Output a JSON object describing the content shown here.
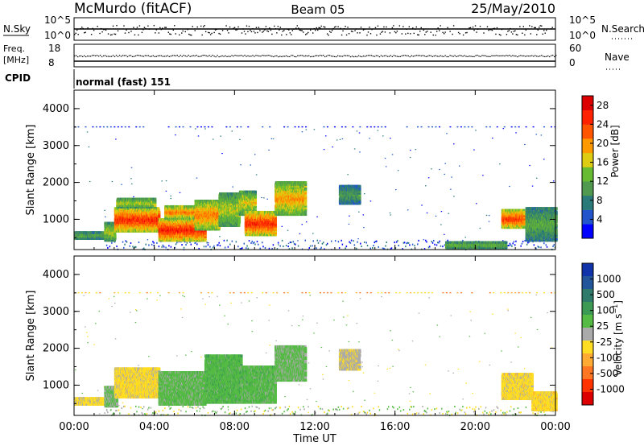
{
  "header": {
    "station": "McMurdo (fitACF)",
    "beam": "Beam 05",
    "date": "25/May/2010"
  },
  "status_panel": {
    "nsky_label": "N.Sky",
    "nsky_ticks": [
      "10^5",
      "10^0"
    ],
    "nsky_right_ticks": [
      "10^5",
      "10^0"
    ],
    "nsearch_label": "N.Search",
    "freq_label": "Freq.",
    "freq_unit": "[MHz]",
    "freq_ticks": [
      "18",
      "8"
    ],
    "nave_ticks": [
      "60",
      "0"
    ],
    "nave_label": "Nave",
    "cpid_label": "CPID",
    "cpid_value": "normal (fast) 151"
  },
  "x_axis": {
    "label": "Time UT",
    "ticks": [
      "00:00",
      "04:00",
      "08:00",
      "12:00",
      "16:00",
      "20:00",
      "00:00"
    ]
  },
  "chart_data": [
    {
      "type": "heatmap",
      "panel": "power",
      "ylabel": "Slant Range [km]",
      "yticks": [
        "1000",
        "2000",
        "3000",
        "4000"
      ],
      "ylim": [
        180,
        4500
      ],
      "xlim_hours": [
        0,
        24
      ],
      "colorbar": {
        "label": "Power [dB]",
        "ticks": [
          "4",
          "8",
          "12",
          "16",
          "20",
          "24",
          "28"
        ],
        "colors": [
          "#0000ff",
          "#2255cc",
          "#2a7a7a",
          "#4f9a4f",
          "#66bb33",
          "#ddcc11",
          "#ff9900",
          "#ff5500",
          "#ff2200",
          "#dd0000"
        ]
      },
      "regions": [
        {
          "t0": 0.0,
          "t1": 1.4,
          "r0": 450,
          "r1": 650,
          "v": 0.45
        },
        {
          "t0": 1.5,
          "t1": 2.0,
          "r0": 400,
          "r1": 900,
          "v": 0.55
        },
        {
          "t0": 2.0,
          "t1": 4.2,
          "r0": 650,
          "r1": 1300,
          "v": 0.92
        },
        {
          "t0": 2.1,
          "t1": 4.0,
          "r0": 1300,
          "r1": 1550,
          "v": 0.6
        },
        {
          "t0": 4.2,
          "t1": 6.5,
          "r0": 400,
          "r1": 1000,
          "v": 0.95
        },
        {
          "t0": 4.5,
          "t1": 6.0,
          "r0": 1000,
          "r1": 1350,
          "v": 0.8
        },
        {
          "t0": 6.0,
          "t1": 7.2,
          "r0": 700,
          "r1": 1500,
          "v": 0.75
        },
        {
          "t0": 7.2,
          "t1": 8.2,
          "r0": 800,
          "r1": 1700,
          "v": 0.55
        },
        {
          "t0": 8.2,
          "t1": 9.0,
          "r0": 1100,
          "r1": 1750,
          "v": 0.6
        },
        {
          "t0": 8.5,
          "t1": 10.0,
          "r0": 550,
          "r1": 1200,
          "v": 0.93
        },
        {
          "t0": 10.0,
          "t1": 11.5,
          "r0": 1100,
          "r1": 2000,
          "v": 0.7
        },
        {
          "t0": 13.2,
          "t1": 14.2,
          "r0": 1400,
          "r1": 1900,
          "v": 0.35
        },
        {
          "t0": 21.3,
          "t1": 22.4,
          "r0": 750,
          "r1": 1250,
          "v": 0.9
        },
        {
          "t0": 22.5,
          "t1": 24.0,
          "r0": 400,
          "r1": 1300,
          "v": 0.4
        },
        {
          "t0": 18.5,
          "t1": 21.5,
          "r0": 200,
          "r1": 380,
          "v": 0.5
        }
      ]
    },
    {
      "type": "heatmap",
      "panel": "velocity",
      "ylabel": "Slant Range [km]",
      "yticks": [
        "1000",
        "2000",
        "3000",
        "4000"
      ],
      "ylim": [
        180,
        4500
      ],
      "xlim_hours": [
        0,
        24
      ],
      "colorbar": {
        "label": "Velocity [m s^-1]",
        "ticks": [
          "1000",
          "500",
          "100",
          "25",
          "-25",
          "-100",
          "-500",
          "-1000"
        ],
        "colors": [
          "#1133aa",
          "#225599",
          "#2f7a6a",
          "#3c9a55",
          "#55bb44",
          "#aaaaaa",
          "#ffdd22",
          "#ffaa33",
          "#ff7722",
          "#ff3300",
          "#dd0000"
        ]
      },
      "regions": [
        {
          "t0": 0.0,
          "t1": 1.4,
          "r0": 450,
          "r1": 650,
          "v": -150
        },
        {
          "t0": 1.5,
          "t1": 2.1,
          "r0": 400,
          "r1": 950,
          "v": 120
        },
        {
          "t0": 2.0,
          "t1": 4.2,
          "r0": 650,
          "r1": 1450,
          "v": -180
        },
        {
          "t0": 4.2,
          "t1": 6.5,
          "r0": 450,
          "r1": 1350,
          "v": 180
        },
        {
          "t0": 6.5,
          "t1": 8.3,
          "r0": 500,
          "r1": 1800,
          "v": 220
        },
        {
          "t0": 8.3,
          "t1": 10.0,
          "r0": 500,
          "r1": 1500,
          "v": 200
        },
        {
          "t0": 10.0,
          "t1": 11.5,
          "r0": 1100,
          "r1": 2050,
          "v": 150
        },
        {
          "t0": 13.2,
          "t1": 14.2,
          "r0": 1400,
          "r1": 1950,
          "v": -60
        },
        {
          "t0": 21.3,
          "t1": 22.8,
          "r0": 600,
          "r1": 1300,
          "v": -180
        },
        {
          "t0": 22.8,
          "t1": 24.0,
          "r0": 300,
          "r1": 800,
          "v": -200
        }
      ]
    }
  ]
}
